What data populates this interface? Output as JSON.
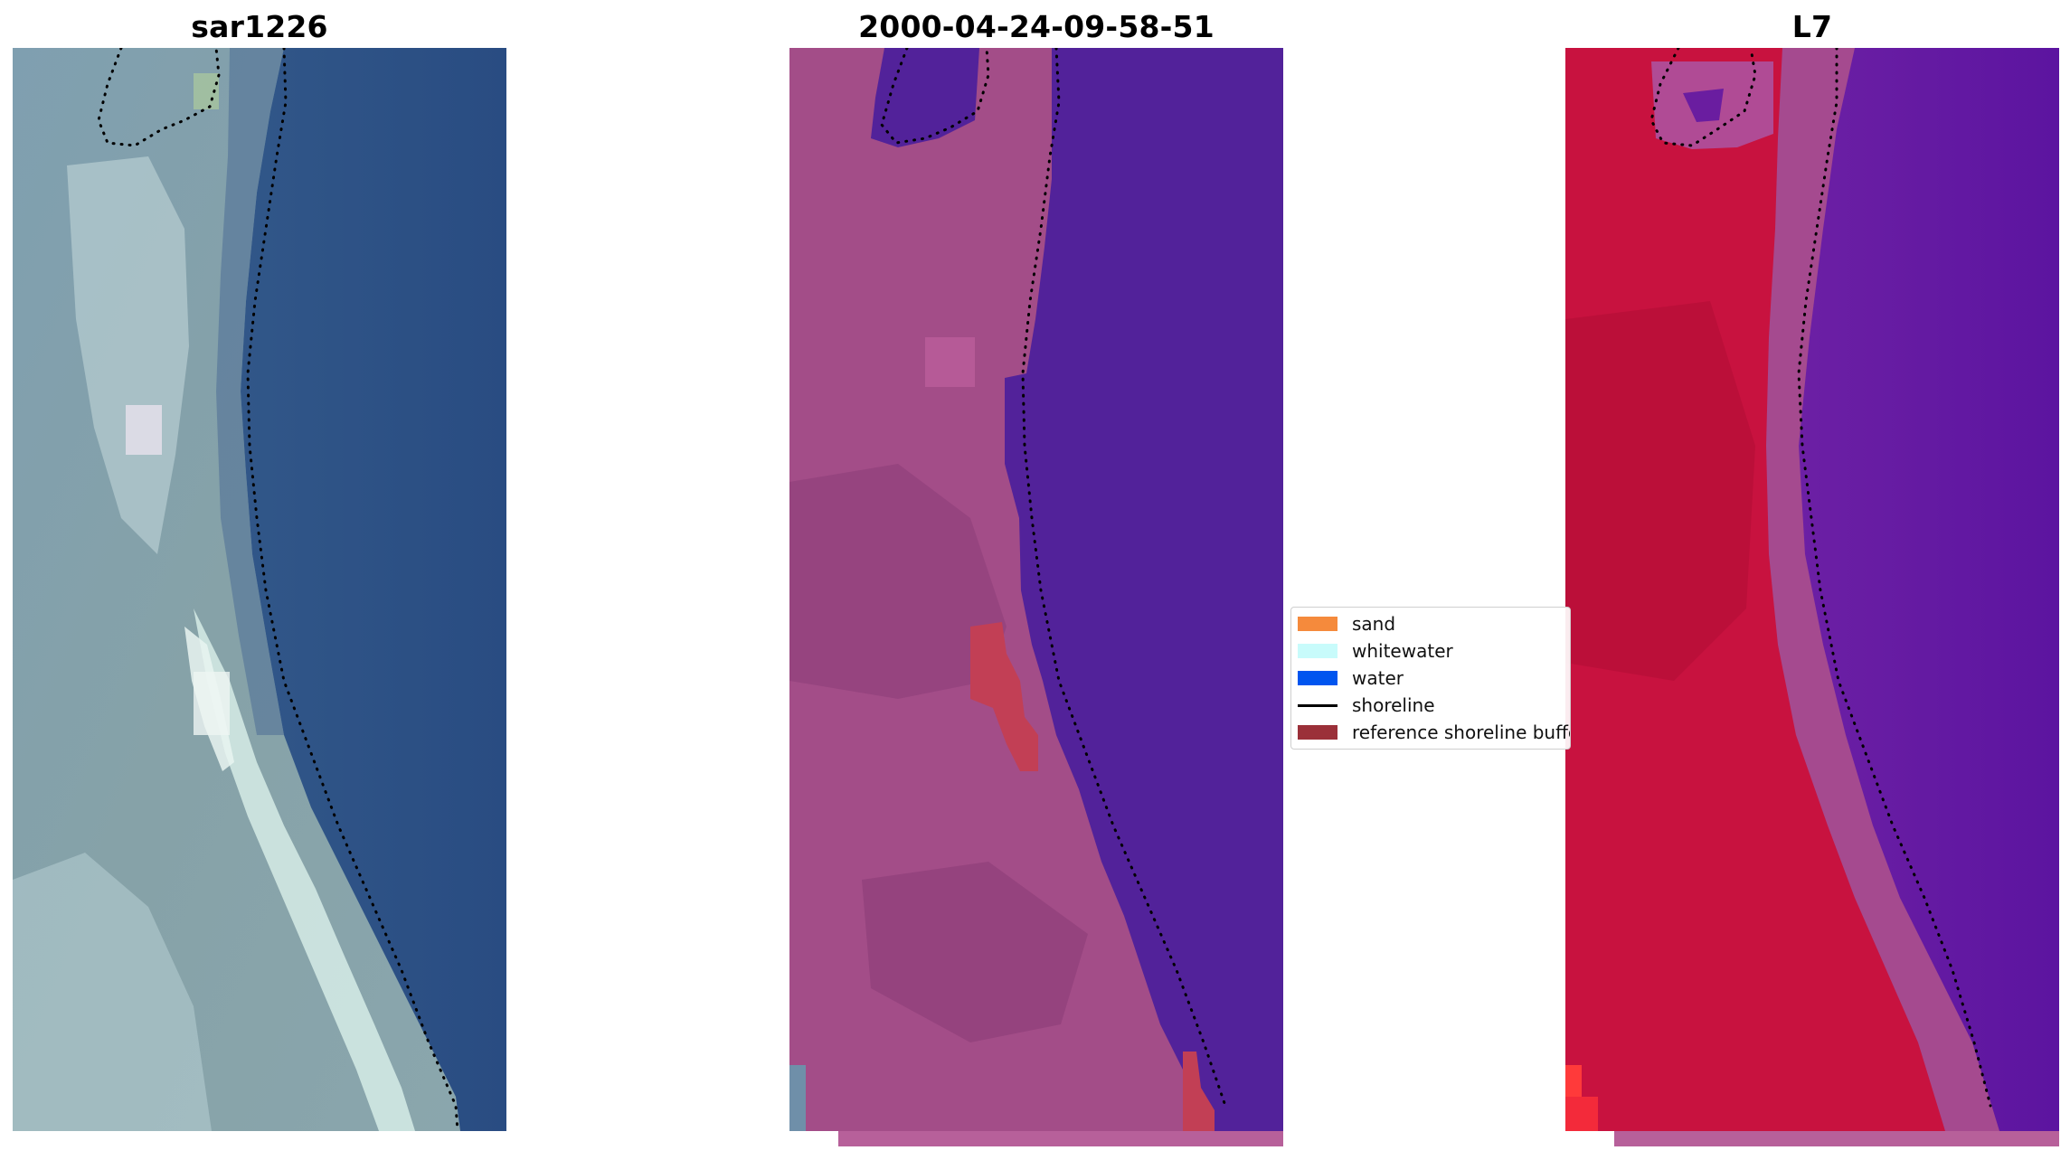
{
  "panels": [
    {
      "title": "sar1226"
    },
    {
      "title": "2000-04-24-09-58-51"
    },
    {
      "title": "L7"
    }
  ],
  "legend": {
    "items": [
      {
        "label": "sand",
        "color": "#f58a3c"
      },
      {
        "label": "whitewater",
        "color": "#c8fbfb"
      },
      {
        "label": "water",
        "color": "#0055ef"
      },
      {
        "label": "shoreline",
        "color": "#000000"
      },
      {
        "label": "reference shoreline buffer",
        "color": "#9b3039"
      }
    ]
  },
  "colors": {
    "rgb_water": "#2c4f85",
    "rgb_land": "#7a98a6",
    "rgb_surf": "#d9efe8",
    "classified_water": "#52229a",
    "classified_land": "#a34d88",
    "classified_buffer": "#c23f55",
    "false_color_land": "#c8123f",
    "false_color_water": "#6a1da0",
    "false_color_transition": "#a54a8f"
  }
}
